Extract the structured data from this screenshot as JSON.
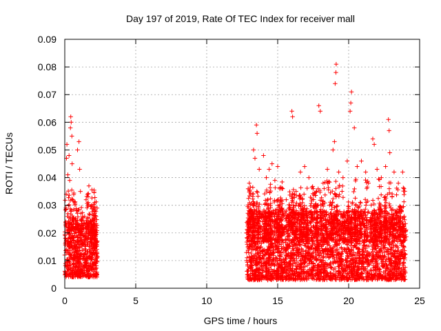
{
  "chart_data": {
    "type": "scatter",
    "title": "Day 197 of 2019, Rate Of TEC Index for receiver mall",
    "xlabel": "GPS time / hours",
    "ylabel": "ROTI / TECUs",
    "xlim": [
      0,
      25
    ],
    "ylim": [
      0,
      0.09
    ],
    "x_ticks": [
      0,
      5,
      10,
      15,
      20,
      25
    ],
    "x_tick_labels": [
      "0",
      "5",
      "10",
      "15",
      "20",
      "25"
    ],
    "y_ticks": [
      0,
      0.01,
      0.02,
      0.03,
      0.04,
      0.05,
      0.06,
      0.07,
      0.08,
      0.09
    ],
    "y_tick_labels": [
      "0",
      "0.01",
      "0.02",
      "0.03",
      "0.04",
      "0.05",
      "0.06",
      "0.07",
      "0.08",
      "0.09"
    ],
    "grid": true,
    "marker": "+",
    "marker_color": "#ff0000",
    "series": [
      {
        "name": "ROTI",
        "points": [
          [
            0.0,
            0.012
          ],
          [
            0.05,
            0.018
          ],
          [
            0.08,
            0.029
          ],
          [
            0.1,
            0.034
          ],
          [
            0.12,
            0.047
          ],
          [
            0.15,
            0.052
          ],
          [
            0.18,
            0.008
          ],
          [
            0.2,
            0.026
          ],
          [
            0.22,
            0.041
          ],
          [
            0.25,
            0.022
          ],
          [
            0.3,
            0.048
          ],
          [
            0.33,
            0.015
          ],
          [
            0.35,
            0.039
          ],
          [
            0.4,
            0.058
          ],
          [
            0.42,
            0.062
          ],
          [
            0.45,
            0.06
          ],
          [
            0.5,
            0.055
          ],
          [
            0.52,
            0.045
          ],
          [
            0.55,
            0.032
          ],
          [
            0.6,
            0.011
          ],
          [
            0.65,
            0.025
          ],
          [
            0.7,
            0.031
          ],
          [
            0.8,
            0.019
          ],
          [
            0.85,
            0.028
          ],
          [
            0.9,
            0.05
          ],
          [
            1.0,
            0.053
          ],
          [
            1.05,
            0.043
          ],
          [
            1.1,
            0.035
          ],
          [
            1.2,
            0.021
          ],
          [
            1.3,
            0.016
          ],
          [
            1.4,
            0.026
          ],
          [
            1.5,
            0.032
          ],
          [
            1.6,
            0.034
          ],
          [
            1.7,
            0.037
          ],
          [
            1.8,
            0.024
          ],
          [
            1.9,
            0.03
          ],
          [
            2.0,
            0.022
          ],
          [
            2.05,
            0.018
          ],
          [
            2.1,
            0.012
          ],
          [
            2.15,
            0.02
          ],
          [
            2.2,
            0.026
          ],
          [
            12.9,
            0.005
          ],
          [
            13.0,
            0.038
          ],
          [
            13.1,
            0.034
          ],
          [
            13.3,
            0.05
          ],
          [
            13.4,
            0.047
          ],
          [
            13.5,
            0.059
          ],
          [
            13.55,
            0.056
          ],
          [
            13.7,
            0.043
          ],
          [
            14.0,
            0.048
          ],
          [
            14.2,
            0.04
          ],
          [
            14.4,
            0.043
          ],
          [
            14.6,
            0.045
          ],
          [
            14.8,
            0.039
          ],
          [
            15.0,
            0.044
          ],
          [
            15.3,
            0.036
          ],
          [
            15.6,
            0.032
          ],
          [
            15.8,
            0.029
          ],
          [
            16.0,
            0.064
          ],
          [
            16.05,
            0.062
          ],
          [
            16.3,
            0.035
          ],
          [
            16.6,
            0.042
          ],
          [
            16.9,
            0.044
          ],
          [
            17.2,
            0.04
          ],
          [
            17.5,
            0.036
          ],
          [
            17.9,
            0.066
          ],
          [
            18.0,
            0.064
          ],
          [
            18.2,
            0.038
          ],
          [
            18.5,
            0.043
          ],
          [
            18.9,
            0.05
          ],
          [
            19.0,
            0.053
          ],
          [
            19.05,
            0.074
          ],
          [
            19.1,
            0.078
          ],
          [
            19.12,
            0.081
          ],
          [
            19.3,
            0.042
          ],
          [
            19.6,
            0.04
          ],
          [
            19.9,
            0.046
          ],
          [
            20.1,
            0.064
          ],
          [
            20.15,
            0.067
          ],
          [
            20.2,
            0.071
          ],
          [
            20.4,
            0.058
          ],
          [
            20.6,
            0.044
          ],
          [
            20.9,
            0.046
          ],
          [
            21.2,
            0.042
          ],
          [
            21.4,
            0.038
          ],
          [
            21.7,
            0.054
          ],
          [
            21.8,
            0.052
          ],
          [
            22.0,
            0.043
          ],
          [
            22.3,
            0.04
          ],
          [
            22.6,
            0.044
          ],
          [
            22.8,
            0.061
          ],
          [
            22.85,
            0.057
          ],
          [
            22.9,
            0.049
          ],
          [
            23.2,
            0.042
          ],
          [
            23.5,
            0.038
          ],
          [
            23.8,
            0.042
          ],
          [
            23.9,
            0.036
          ]
        ],
        "dense_bands": [
          {
            "x_range": [
              0.0,
              2.3
            ],
            "y_range": [
              0.004,
              0.024
            ]
          },
          {
            "x_range": [
              12.8,
              24.0
            ],
            "y_range": [
              0.003,
              0.028
            ]
          }
        ]
      }
    ]
  }
}
